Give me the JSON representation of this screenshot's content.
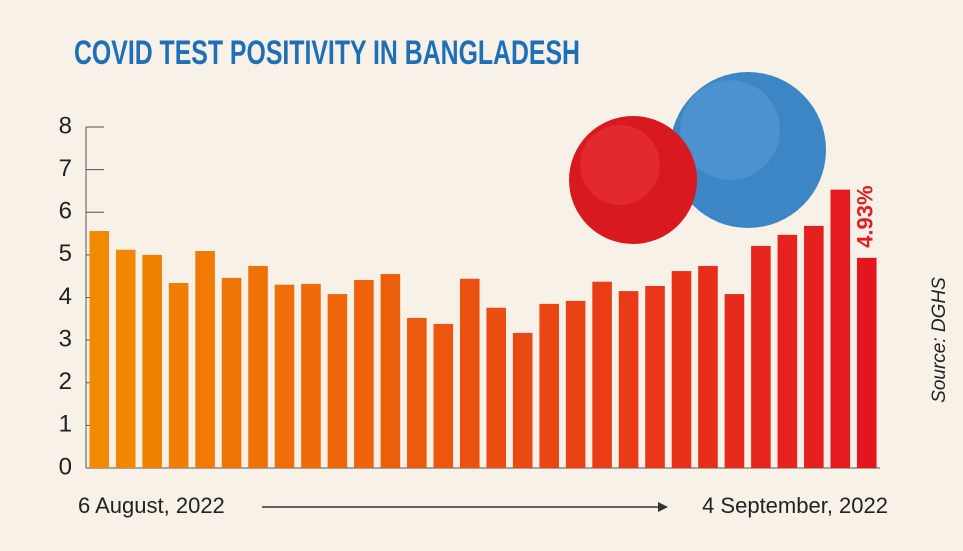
{
  "chart_data": {
    "type": "bar",
    "title": "COVID TEST POSITIVITY IN BANGLADESH",
    "source": "Source: DGHS",
    "categories": [
      "6 August, 2022",
      null,
      null,
      null,
      null,
      null,
      null,
      null,
      null,
      null,
      null,
      null,
      null,
      null,
      null,
      null,
      null,
      null,
      null,
      null,
      null,
      null,
      null,
      null,
      null,
      null,
      null,
      null,
      null,
      "4 September, 2022"
    ],
    "values": [
      5.56,
      5.12,
      5.0,
      4.34,
      5.09,
      4.46,
      4.74,
      4.3,
      4.32,
      4.08,
      4.41,
      4.55,
      3.52,
      3.38,
      4.44,
      3.76,
      3.17,
      3.85,
      3.92,
      4.37,
      4.15,
      4.27,
      4.62,
      4.74,
      4.08,
      5.21,
      5.47,
      5.68,
      6.53,
      4.93
    ],
    "value_labels": [
      null,
      null,
      null,
      null,
      null,
      null,
      null,
      null,
      null,
      null,
      null,
      null,
      null,
      null,
      null,
      null,
      null,
      null,
      null,
      null,
      null,
      null,
      null,
      null,
      null,
      null,
      null,
      null,
      null,
      "4.93%"
    ],
    "colors": [
      "#f18a00",
      "#f18600",
      "#f08200",
      "#f07e03",
      "#f07a04",
      "#ef7605",
      "#ef7206",
      "#ef6e07",
      "#ee6a08",
      "#ee660a",
      "#ed620b",
      "#ed5e0c",
      "#ec5a0d",
      "#ec560e",
      "#eb5210",
      "#eb4e11",
      "#ea4a12",
      "#ea4613",
      "#e94214",
      "#e93e15",
      "#e83a16",
      "#e83618",
      "#e73219",
      "#e72e1a",
      "#e62a1b",
      "#e6261c",
      "#e5221d",
      "#e51e1e",
      "#e41a1f",
      "#e31620"
    ],
    "ylim": [
      0,
      8
    ],
    "yticks": [
      0,
      1,
      2,
      3,
      4,
      5,
      6,
      7,
      8
    ],
    "grid": false
  }
}
